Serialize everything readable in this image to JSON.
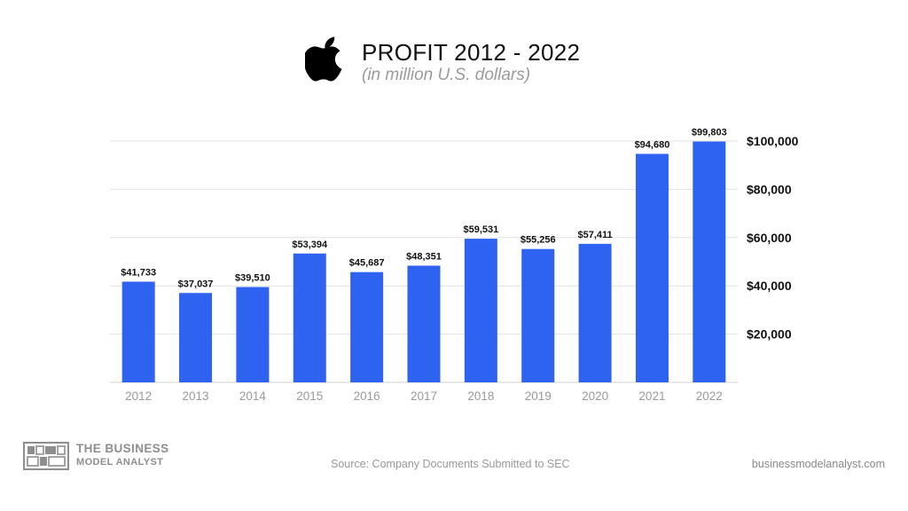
{
  "header": {
    "title": "PROFIT 2012 - 2022",
    "subtitle": "(in million U.S. dollars)",
    "logo_icon": "apple-logo-icon"
  },
  "footer": {
    "brand_line1": "THE BUSINESS",
    "brand_line2": "MODEL ANALYST",
    "source": "Source: Company Documents Submitted to SEC",
    "website": "businessmodelanalyst.com"
  },
  "colors": {
    "bar": "#2e62f0",
    "grid": "#e2e2e2",
    "axis_label": "#9a9a9a",
    "tick_label": "#111111",
    "data_label": "#111111"
  },
  "chart_data": {
    "type": "bar",
    "title": "PROFIT 2012 - 2022",
    "subtitle": "(in million U.S. dollars)",
    "categories": [
      "2012",
      "2013",
      "2014",
      "2015",
      "2016",
      "2017",
      "2018",
      "2019",
      "2020",
      "2021",
      "2022"
    ],
    "values": [
      41733,
      37037,
      39510,
      53394,
      45687,
      48351,
      59531,
      55256,
      57411,
      94680,
      99803
    ],
    "data_labels": [
      "$41,733",
      "$37,037",
      "$39,510",
      "$53,394",
      "$45,687",
      "$48,351",
      "$59,531",
      "$55,256",
      "$57,411",
      "$94,680",
      "$99,803"
    ],
    "ylim": [
      0,
      100000
    ],
    "y_ticks": [
      20000,
      40000,
      60000,
      80000,
      100000
    ],
    "y_tick_labels": [
      "$20,000",
      "$40,000",
      "$60,000",
      "$80,000",
      "$100,000"
    ],
    "y_axis_side": "right",
    "grid": true,
    "legend": "none"
  }
}
